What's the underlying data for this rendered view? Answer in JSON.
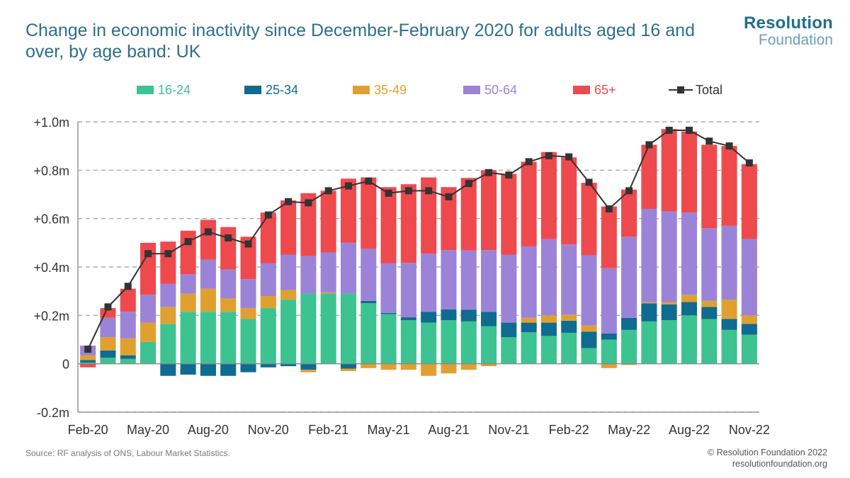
{
  "title": "Change in economic inactivity since December-February 2020 for adults aged 16 and over, by age band: UK",
  "logo": {
    "line1": "Resolution",
    "line2": "Foundation"
  },
  "source": "Source: RF analysis of ONS, Labour Market Statistics.",
  "copyright": {
    "line1": "© Resolution Foundation 2022",
    "line2": "resolutionfoundation.org"
  },
  "colors": {
    "a16_24": "#3cc391",
    "a25_34": "#0f6b8f",
    "a35_49": "#e0a030",
    "a50_64": "#9b84d8",
    "a65plus": "#ee4a4e",
    "total": "#333333",
    "grid": "#999999"
  },
  "chart_data": {
    "type": "bar",
    "stacked": true,
    "title": "Change in economic inactivity since December-February 2020 for adults aged 16 and over, by age band: UK",
    "ylim": [
      -0.2,
      1.0
    ],
    "yticks": [
      {
        "value": 1.0,
        "label": "+1.0m"
      },
      {
        "value": 0.8,
        "label": "+0.8m"
      },
      {
        "value": 0.6,
        "label": "+0.6m"
      },
      {
        "value": 0.4,
        "label": "+0.4m"
      },
      {
        "value": 0.2,
        "label": "+0.2m"
      },
      {
        "value": 0.0,
        "label": "0"
      },
      {
        "value": -0.2,
        "label": "-0.2m"
      }
    ],
    "xtick_labels": [
      {
        "index": 0,
        "label": "Feb-20"
      },
      {
        "index": 3,
        "label": "May-20"
      },
      {
        "index": 6,
        "label": "Aug-20"
      },
      {
        "index": 9,
        "label": "Nov-20"
      },
      {
        "index": 12,
        "label": "Feb-21"
      },
      {
        "index": 15,
        "label": "May-21"
      },
      {
        "index": 18,
        "label": "Aug-21"
      },
      {
        "index": 21,
        "label": "Nov-21"
      },
      {
        "index": 24,
        "label": "Feb-22"
      },
      {
        "index": 27,
        "label": "May-22"
      },
      {
        "index": 30,
        "label": "Aug-22"
      },
      {
        "index": 33,
        "label": "Nov-22"
      }
    ],
    "grid": "horizontal dashed",
    "legend_position": "top",
    "categories": [
      "Feb-20",
      "Mar-20",
      "Apr-20",
      "May-20",
      "Jun-20",
      "Jul-20",
      "Aug-20",
      "Sep-20",
      "Oct-20",
      "Nov-20",
      "Dec-20",
      "Jan-21",
      "Feb-21",
      "Mar-21",
      "Apr-21",
      "May-21",
      "Jun-21",
      "Jul-21",
      "Aug-21",
      "Sep-21",
      "Oct-21",
      "Nov-21",
      "Dec-21",
      "Jan-22",
      "Feb-22",
      "Mar-22",
      "Apr-22",
      "May-22",
      "Jun-22",
      "Jul-22",
      "Aug-22",
      "Sep-22",
      "Oct-22",
      "Nov-22"
    ],
    "series": [
      {
        "name": "16-24",
        "values": [
          0.005,
          0.025,
          0.02,
          0.09,
          0.165,
          0.215,
          0.215,
          0.215,
          0.185,
          0.23,
          0.265,
          0.29,
          0.29,
          0.29,
          0.25,
          0.205,
          0.18,
          0.17,
          0.18,
          0.175,
          0.155,
          0.11,
          0.13,
          0.115,
          0.128,
          0.065,
          0.1,
          0.14,
          0.175,
          0.18,
          0.2,
          0.185,
          0.14,
          0.12
        ]
      },
      {
        "name": "25-34",
        "values": [
          0.01,
          0.03,
          0.015,
          0.0,
          -0.05,
          -0.045,
          -0.05,
          -0.05,
          -0.035,
          -0.015,
          -0.01,
          -0.025,
          0.0,
          -0.02,
          0.01,
          0.005,
          0.012,
          0.045,
          0.045,
          0.048,
          0.06,
          0.06,
          0.04,
          0.055,
          0.05,
          0.068,
          0.025,
          0.05,
          0.075,
          0.065,
          0.055,
          0.05,
          0.045,
          0.045
        ]
      },
      {
        "name": "35-49",
        "values": [
          0.02,
          0.055,
          0.07,
          0.08,
          0.07,
          0.075,
          0.095,
          0.055,
          0.045,
          0.05,
          0.04,
          -0.01,
          0.005,
          -0.01,
          -0.018,
          -0.025,
          -0.025,
          -0.05,
          -0.04,
          -0.025,
          -0.01,
          0.0,
          0.02,
          0.03,
          0.025,
          0.025,
          -0.018,
          -0.005,
          0.005,
          0.01,
          0.03,
          0.025,
          0.08,
          0.035
        ]
      },
      {
        "name": "50-64",
        "values": [
          0.04,
          0.08,
          0.11,
          0.115,
          0.095,
          0.08,
          0.12,
          0.12,
          0.12,
          0.135,
          0.145,
          0.155,
          0.165,
          0.21,
          0.215,
          0.205,
          0.225,
          0.24,
          0.245,
          0.245,
          0.255,
          0.28,
          0.295,
          0.315,
          0.29,
          0.29,
          0.27,
          0.335,
          0.385,
          0.375,
          0.34,
          0.3,
          0.305,
          0.315
        ]
      },
      {
        "name": "65+",
        "values": [
          -0.015,
          0.04,
          0.095,
          0.215,
          0.175,
          0.18,
          0.165,
          0.175,
          0.175,
          0.21,
          0.225,
          0.26,
          0.255,
          0.265,
          0.295,
          0.315,
          0.325,
          0.315,
          0.26,
          0.3,
          0.33,
          0.335,
          0.35,
          0.36,
          0.36,
          0.3,
          0.255,
          0.195,
          0.265,
          0.34,
          0.335,
          0.345,
          0.33,
          0.31
        ]
      }
    ],
    "total": {
      "name": "Total",
      "values": [
        0.06,
        0.235,
        0.32,
        0.455,
        0.455,
        0.505,
        0.545,
        0.52,
        0.495,
        0.615,
        0.67,
        0.665,
        0.715,
        0.735,
        0.755,
        0.705,
        0.715,
        0.715,
        0.69,
        0.745,
        0.79,
        0.78,
        0.835,
        0.86,
        0.855,
        0.75,
        0.64,
        0.715,
        0.905,
        0.965,
        0.965,
        0.92,
        0.9,
        0.83
      ]
    }
  }
}
